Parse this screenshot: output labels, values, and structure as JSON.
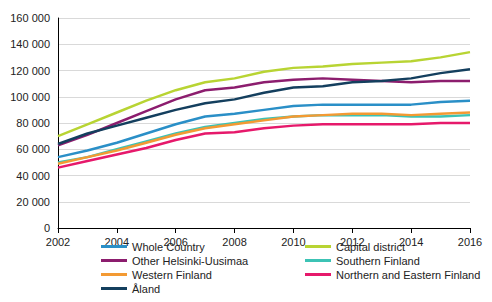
{
  "chart_data": {
    "type": "line",
    "x": [
      2002,
      2003,
      2004,
      2005,
      2006,
      2007,
      2008,
      2009,
      2010,
      2011,
      2012,
      2013,
      2014,
      2015,
      2016
    ],
    "xlim": [
      2002,
      2016
    ],
    "xticks": [
      2002,
      2004,
      2006,
      2008,
      2010,
      2012,
      2014,
      2016
    ],
    "ylim": [
      0,
      160000
    ],
    "yticks": [
      0,
      {
        "value": 20000,
        "label": "20 000"
      },
      {
        "value": 40000,
        "label": "40 000"
      },
      {
        "value": 60000,
        "label": "60 000"
      },
      {
        "value": 80000,
        "label": "80 000"
      },
      {
        "value": 100000,
        "label": "100 000"
      },
      {
        "value": 120000,
        "label": "120 000"
      },
      {
        "value": 140000,
        "label": "140 000"
      },
      {
        "value": 160000,
        "label": "160 000"
      }
    ],
    "grid": true,
    "legend": "bottom",
    "series": [
      {
        "name": "Whole Country",
        "color": "#2a8fc7",
        "values": [
          54000,
          59000,
          65000,
          72000,
          79000,
          85000,
          87000,
          90000,
          93000,
          94000,
          94000,
          94000,
          94000,
          96000,
          97000
        ]
      },
      {
        "name": "Capital district",
        "color": "#b8d433",
        "values": [
          70000,
          79000,
          88000,
          97000,
          105000,
          111000,
          114000,
          119000,
          122000,
          123000,
          125000,
          126000,
          127000,
          130000,
          134000
        ]
      },
      {
        "name": "Other Helsinki-Uusimaa",
        "color": "#8c1d6e",
        "values": [
          63000,
          71000,
          80000,
          89000,
          98000,
          105000,
          107000,
          111000,
          113000,
          114000,
          113000,
          112000,
          111000,
          112000,
          112000
        ]
      },
      {
        "name": "Southern Finland",
        "color": "#3cc3b5",
        "values": [
          50000,
          54000,
          60000,
          66000,
          72000,
          77000,
          80000,
          83000,
          85000,
          86000,
          86000,
          86000,
          85000,
          85000,
          86000
        ]
      },
      {
        "name": "Western Finland",
        "color": "#f39a33",
        "values": [
          49000,
          54000,
          59000,
          65000,
          71000,
          76000,
          79000,
          82000,
          85000,
          86000,
          87000,
          87000,
          86000,
          87000,
          88000
        ]
      },
      {
        "name": "Northern and Eastern Finland",
        "color": "#e6196b",
        "values": [
          46000,
          51000,
          56000,
          61000,
          67000,
          72000,
          73000,
          76000,
          78000,
          79000,
          79000,
          79000,
          79000,
          80000,
          80000
        ]
      },
      {
        "name": "Åland",
        "color": "#143f5e",
        "values": [
          64000,
          72000,
          78000,
          84000,
          90000,
          95000,
          98000,
          103000,
          107000,
          108000,
          111000,
          112000,
          114000,
          118000,
          121000
        ]
      }
    ]
  }
}
